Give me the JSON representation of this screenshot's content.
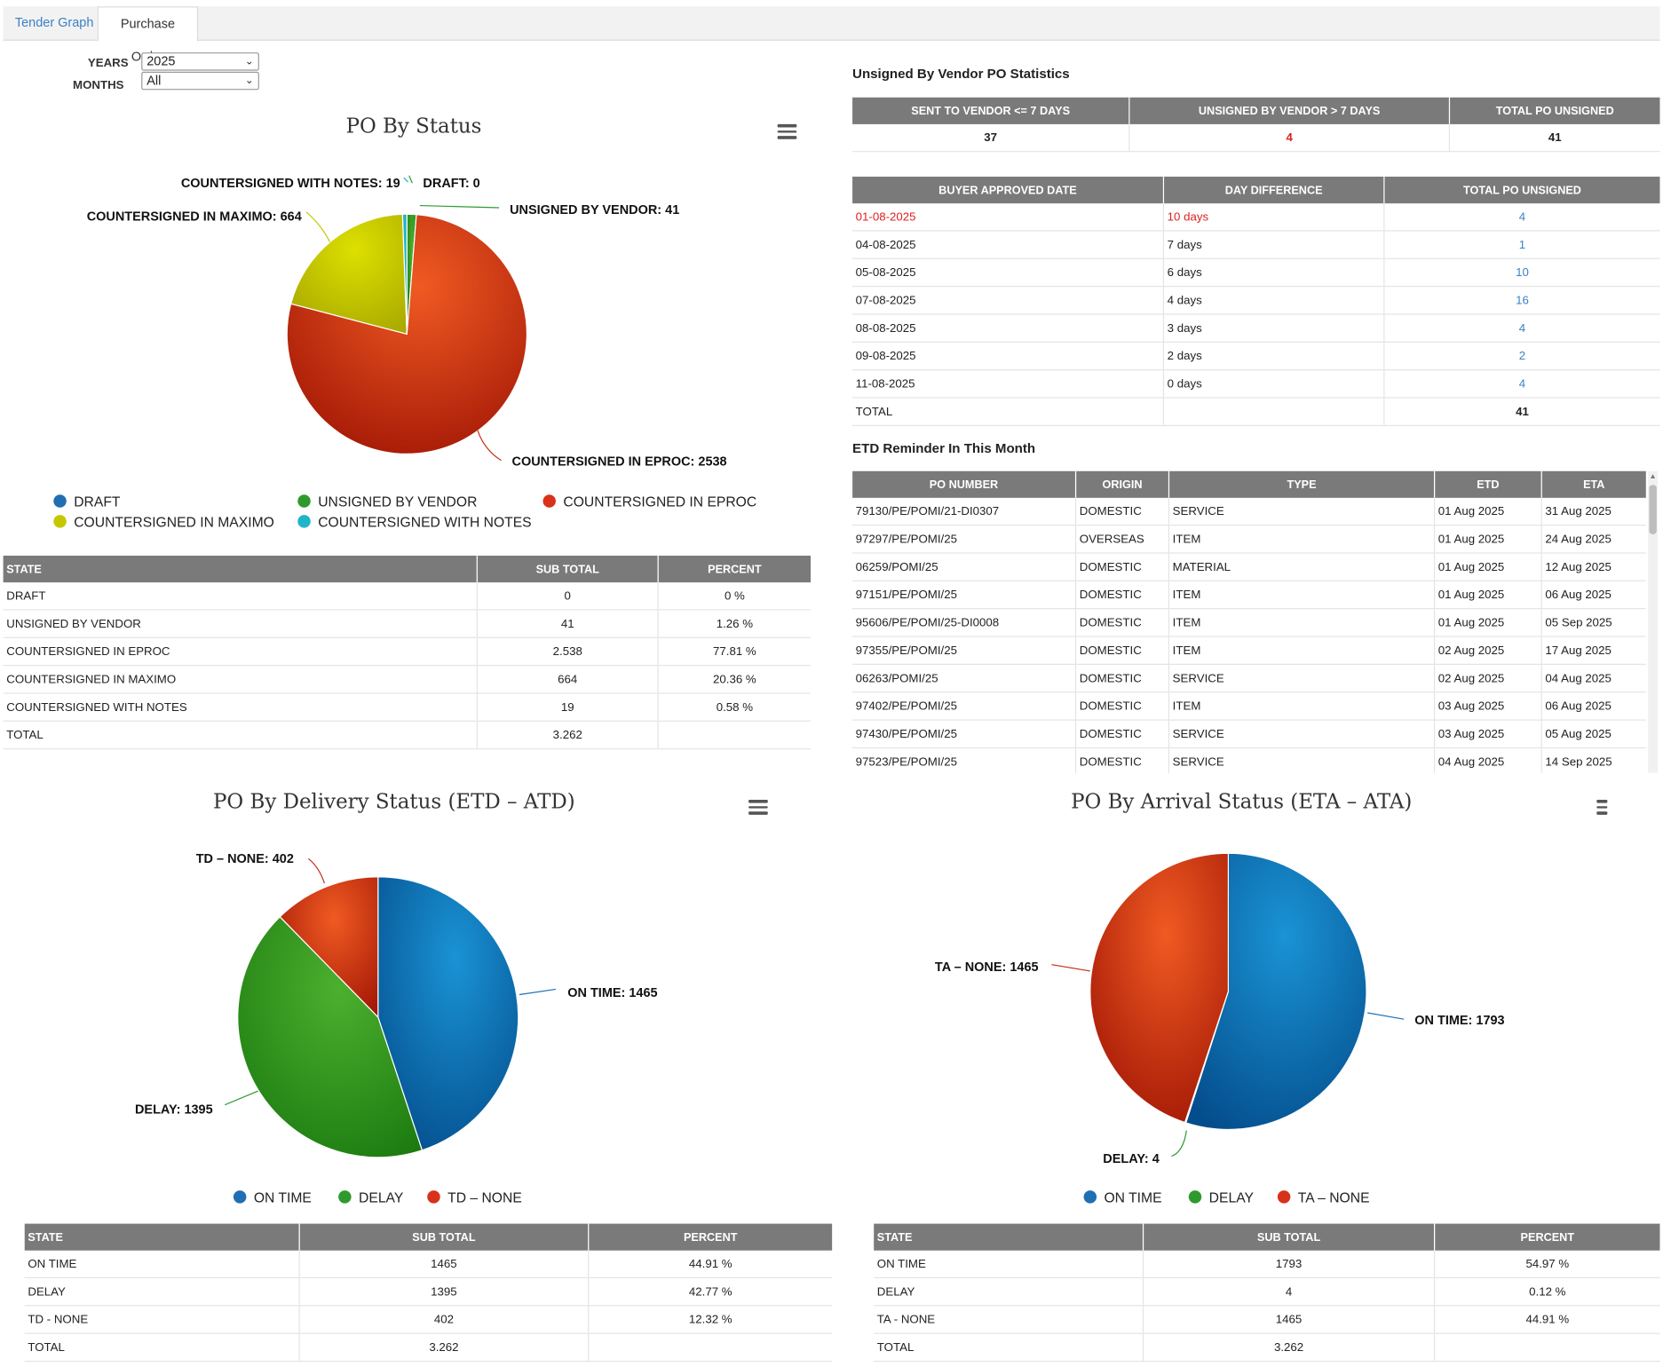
{
  "tabs": [
    {
      "label": "Tender Graph"
    },
    {
      "label": "Purchase Order"
    }
  ],
  "filters": {
    "years_label": "YEARS",
    "years_value": "2025",
    "months_label": "MONTHS",
    "months_value": "All"
  },
  "po_status": {
    "title": "PO By Status",
    "labels": {
      "countersigned_notes": "COUNTERSIGNED WITH NOTES: 19",
      "draft": "DRAFT: 0",
      "maximo": "COUNTERSIGNED IN MAXIMO: 664",
      "unsigned": "UNSIGNED BY VENDOR: 41",
      "eproc": "COUNTERSIGNED IN EPROC: 2538"
    },
    "legend": [
      "DRAFT",
      "UNSIGNED BY VENDOR",
      "COUNTERSIGNED IN EPROC",
      "COUNTERSIGNED IN MAXIMO",
      "COUNTERSIGNED WITH NOTES"
    ],
    "table": {
      "headers": [
        "STATE",
        "SUB TOTAL",
        "PERCENT"
      ],
      "rows": [
        [
          "DRAFT",
          "0",
          "0 %"
        ],
        [
          "UNSIGNED BY VENDOR",
          "41",
          "1.26 %"
        ],
        [
          "COUNTERSIGNED IN EPROC",
          "2.538",
          "77.81 %"
        ],
        [
          "COUNTERSIGNED IN MAXIMO",
          "664",
          "20.36 %"
        ],
        [
          "COUNTERSIGNED WITH NOTES",
          "19",
          "0.58 %"
        ],
        [
          "TOTAL",
          "3.262",
          ""
        ]
      ]
    }
  },
  "unsigned_stats": {
    "title": "Unsigned By Vendor PO Statistics",
    "summary_headers": [
      "SENT TO VENDOR <= 7 DAYS",
      "UNSIGNED BY VENDOR > 7 DAYS",
      "TOTAL PO UNSIGNED"
    ],
    "summary_values": [
      "37",
      "4",
      "41"
    ],
    "detail_headers": [
      "BUYER APPROVED DATE",
      "DAY DIFFERENCE",
      "TOTAL PO UNSIGNED"
    ],
    "detail_rows": [
      [
        "01-08-2025",
        "10 days",
        "4"
      ],
      [
        "04-08-2025",
        "7 days",
        "1"
      ],
      [
        "05-08-2025",
        "6 days",
        "10"
      ],
      [
        "07-08-2025",
        "4 days",
        "16"
      ],
      [
        "08-08-2025",
        "3 days",
        "4"
      ],
      [
        "09-08-2025",
        "2 days",
        "2"
      ],
      [
        "11-08-2025",
        "0 days",
        "4"
      ]
    ],
    "detail_total": [
      "TOTAL",
      "",
      "41"
    ]
  },
  "etd_reminder": {
    "title": "ETD Reminder In This Month",
    "headers": [
      "PO NUMBER",
      "ORIGIN",
      "TYPE",
      "ETD",
      "ETA"
    ],
    "rows": [
      [
        "79130/PE/POMI/21-DI0307",
        "DOMESTIC",
        "SERVICE",
        "01 Aug 2025",
        "31 Aug 2025"
      ],
      [
        "97297/PE/POMI/25",
        "OVERSEAS",
        "ITEM",
        "01 Aug 2025",
        "24 Aug 2025"
      ],
      [
        "06259/POMI/25",
        "DOMESTIC",
        "MATERIAL",
        "01 Aug 2025",
        "12 Aug 2025"
      ],
      [
        "97151/PE/POMI/25",
        "DOMESTIC",
        "ITEM",
        "01 Aug 2025",
        "06 Aug 2025"
      ],
      [
        "95606/PE/POMI/25-DI0008",
        "DOMESTIC",
        "ITEM",
        "01 Aug 2025",
        "05 Sep 2025"
      ],
      [
        "97355/PE/POMI/25",
        "DOMESTIC",
        "ITEM",
        "02 Aug 2025",
        "17 Aug 2025"
      ],
      [
        "06263/POMI/25",
        "DOMESTIC",
        "SERVICE",
        "02 Aug 2025",
        "04 Aug 2025"
      ],
      [
        "97402/PE/POMI/25",
        "DOMESTIC",
        "ITEM",
        "03 Aug 2025",
        "06 Aug 2025"
      ],
      [
        "97430/PE/POMI/25",
        "DOMESTIC",
        "SERVICE",
        "03 Aug 2025",
        "05 Aug 2025"
      ],
      [
        "97523/PE/POMI/25",
        "DOMESTIC",
        "SERVICE",
        "04 Aug 2025",
        "14 Sep 2025"
      ]
    ]
  },
  "delivery": {
    "title": "PO By Delivery Status (ETD – ATD)",
    "labels": {
      "td_none": "TD – NONE: 402",
      "on_time": "ON TIME: 1465",
      "delay": "DELAY: 1395"
    },
    "legend": [
      "ON TIME",
      "DELAY",
      "TD – NONE"
    ],
    "table": {
      "headers": [
        "STATE",
        "SUB TOTAL",
        "PERCENT"
      ],
      "rows": [
        [
          "ON TIME",
          "1465",
          "44.91 %"
        ],
        [
          "DELAY",
          "1395",
          "42.77 %"
        ],
        [
          "TD - NONE",
          "402",
          "12.32 %"
        ],
        [
          "TOTAL",
          "3.262",
          ""
        ]
      ]
    }
  },
  "arrival": {
    "title": "PO By Arrival Status (ETA – ATA)",
    "labels": {
      "ta_none": "TA – NONE: 1465",
      "on_time": "ON TIME: 1793",
      "delay": "DELAY: 4"
    },
    "legend": [
      "ON TIME",
      "DELAY",
      "TA – NONE"
    ],
    "table": {
      "headers": [
        "STATE",
        "SUB TOTAL",
        "PERCENT"
      ],
      "rows": [
        [
          "ON TIME",
          "1793",
          "54.97 %"
        ],
        [
          "DELAY",
          "4",
          "0.12 %"
        ],
        [
          "TA - NONE",
          "1465",
          "44.91 %"
        ],
        [
          "TOTAL",
          "3.262",
          ""
        ]
      ]
    }
  },
  "colors": {
    "blue": "#1f6fb2",
    "green": "#2e9a2e",
    "red": "#d8321a",
    "yellow": "#c5c800",
    "cyan": "#20b4c8",
    "header_gray": "#7a7a7a",
    "link": "#3a82c4"
  },
  "chart_data": [
    {
      "type": "pie",
      "title": "PO By Status",
      "categories": [
        "DRAFT",
        "UNSIGNED BY VENDOR",
        "COUNTERSIGNED IN EPROC",
        "COUNTERSIGNED IN MAXIMO",
        "COUNTERSIGNED WITH NOTES"
      ],
      "values": [
        0,
        41,
        2538,
        664,
        19
      ]
    },
    {
      "type": "pie",
      "title": "PO By Delivery Status (ETD – ATD)",
      "categories": [
        "ON TIME",
        "DELAY",
        "TD – NONE"
      ],
      "values": [
        1465,
        1395,
        402
      ]
    },
    {
      "type": "pie",
      "title": "PO By Arrival Status (ETA – ATA)",
      "categories": [
        "ON TIME",
        "DELAY",
        "TA – NONE"
      ],
      "values": [
        1793,
        4,
        1465
      ]
    }
  ]
}
